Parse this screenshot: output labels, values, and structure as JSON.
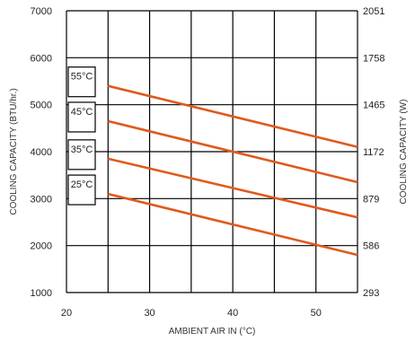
{
  "chart_data": {
    "type": "line",
    "xlabel": "AMBIENT AIR IN (°C)",
    "ylabel": "COOLING CAPACITY (BTU/hr.)",
    "y2label": "COOLING CAPACITY (W)",
    "xlim": [
      20,
      55
    ],
    "ylim": [
      1000,
      7000
    ],
    "xticks": [
      "20",
      "30",
      "40",
      "50"
    ],
    "yticks": [
      "1000",
      "2000",
      "3000",
      "4000",
      "5000",
      "6000",
      "7000"
    ],
    "y2ticks": [
      "293",
      "586",
      "879",
      "1172",
      "1465",
      "1758",
      "2051"
    ],
    "grid": true,
    "legend": "none",
    "series": [
      {
        "name": "55°C",
        "x": [
          25,
          55
        ],
        "y": [
          5400,
          4100
        ]
      },
      {
        "name": "45°C",
        "x": [
          25,
          55
        ],
        "y": [
          4650,
          3350
        ]
      },
      {
        "name": "35°C",
        "x": [
          25,
          55
        ],
        "y": [
          3850,
          2600
        ]
      },
      {
        "name": "25°C",
        "x": [
          25,
          55
        ],
        "y": [
          3100,
          1800
        ]
      }
    ],
    "colors": {
      "series": "#e05a1e",
      "grid": "#000000"
    }
  }
}
